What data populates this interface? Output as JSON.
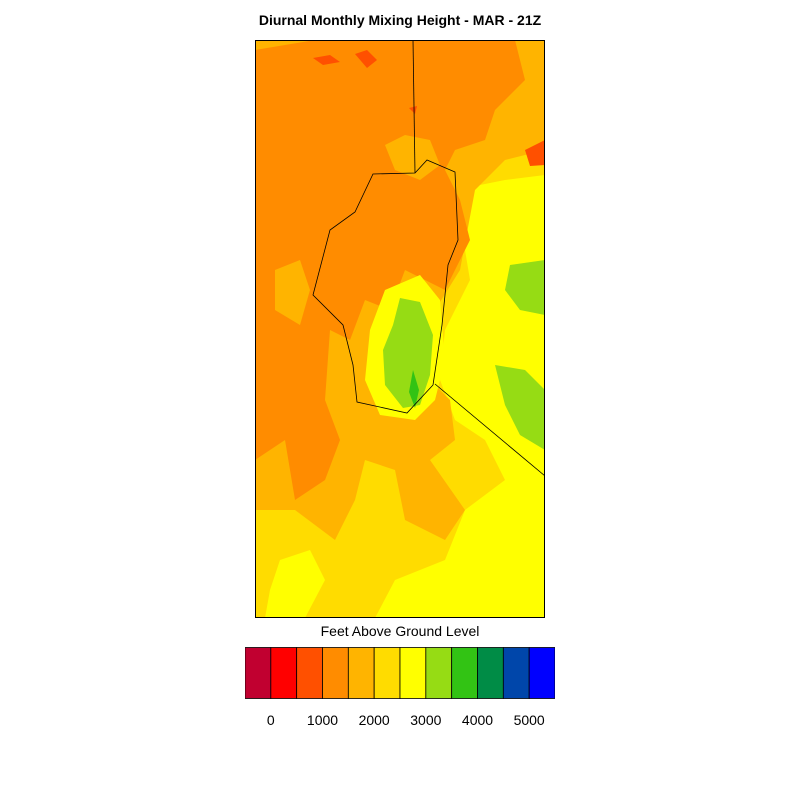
{
  "title": "Diurnal Monthly Mixing Height - MAR - 21Z",
  "colorbar": {
    "label": "Feet Above Ground Level",
    "colors": [
      "#c10030",
      "#ff0000",
      "#ff5000",
      "#ff8c00",
      "#ffb400",
      "#ffdc00",
      "#ffff00",
      "#96dc14",
      "#32c314",
      "#008c46",
      "#0046aa",
      "#0000ff"
    ],
    "tick_labels": [
      "0",
      "1000",
      "2000",
      "3000",
      "4000",
      "5000"
    ],
    "tick_values": [
      0,
      1000,
      2000,
      3000,
      4000,
      5000
    ]
  },
  "map": {
    "dominant_colors": {
      "north_west": "#ff8c00",
      "central_low": "#ffb400",
      "south": "#ffdc00",
      "east": "#ffff00",
      "core": "#96dc14",
      "peak": "#32c314"
    }
  }
}
